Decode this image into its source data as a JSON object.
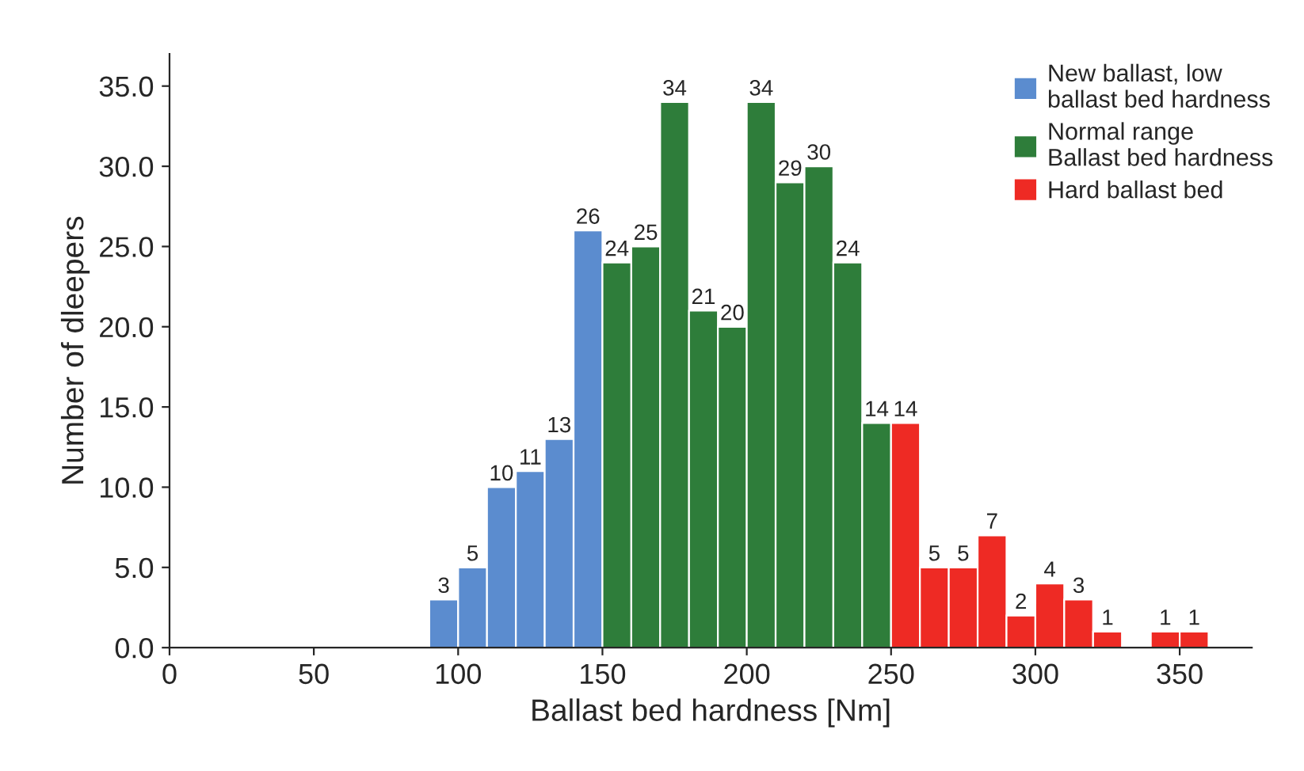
{
  "chart_data": {
    "type": "histogram",
    "xlabel": "Ballast bed hardness [Nm]",
    "ylabel": "Number of dleepers",
    "bins": [
      90,
      100,
      110,
      120,
      130,
      140,
      150,
      160,
      170,
      180,
      190,
      200,
      210,
      220,
      230,
      240,
      250,
      260,
      270,
      280,
      290,
      300,
      310,
      320,
      330,
      340,
      350,
      360
    ],
    "series": [
      {
        "name": "New ballast, low\nballast bed hardness",
        "color": "#5b8ccf",
        "values": [
          3,
          5,
          10,
          11,
          13,
          26,
          null,
          null,
          null,
          null,
          null,
          null,
          null,
          null,
          null,
          null,
          null,
          null,
          null,
          null,
          null,
          null,
          null,
          null,
          null,
          null,
          null
        ]
      },
      {
        "name": "Normal range\nBallast bed hardness",
        "color": "#2e7d3a",
        "values": [
          null,
          null,
          null,
          null,
          null,
          null,
          24,
          25,
          34,
          21,
          20,
          34,
          29,
          30,
          24,
          14,
          null,
          null,
          null,
          null,
          null,
          null,
          null,
          null,
          null,
          null,
          null
        ]
      },
      {
        "name": "Hard ballast bed",
        "color": "#ee2a24",
        "values": [
          null,
          null,
          null,
          null,
          null,
          null,
          null,
          null,
          null,
          null,
          null,
          null,
          null,
          null,
          null,
          null,
          14,
          5,
          5,
          7,
          2,
          4,
          3,
          1,
          null,
          1,
          1
        ]
      }
    ],
    "xlim": [
      0,
      375
    ],
    "xticks": [
      0,
      50,
      100,
      150,
      200,
      250,
      300,
      350
    ],
    "ylim": [
      0,
      37
    ],
    "yticks": [
      {
        "value": 0,
        "label": "0.0"
      },
      {
        "value": 5,
        "label": "5.0"
      },
      {
        "value": 10,
        "label": "10.0"
      },
      {
        "value": 15,
        "label": "15.0"
      },
      {
        "value": 20,
        "label": "20.0"
      },
      {
        "value": 25,
        "label": "25.0"
      },
      {
        "value": 30,
        "label": "30.0"
      },
      {
        "value": 35,
        "label": "35.0"
      }
    ],
    "data_labels": true,
    "legend": "top right",
    "grid": false
  }
}
